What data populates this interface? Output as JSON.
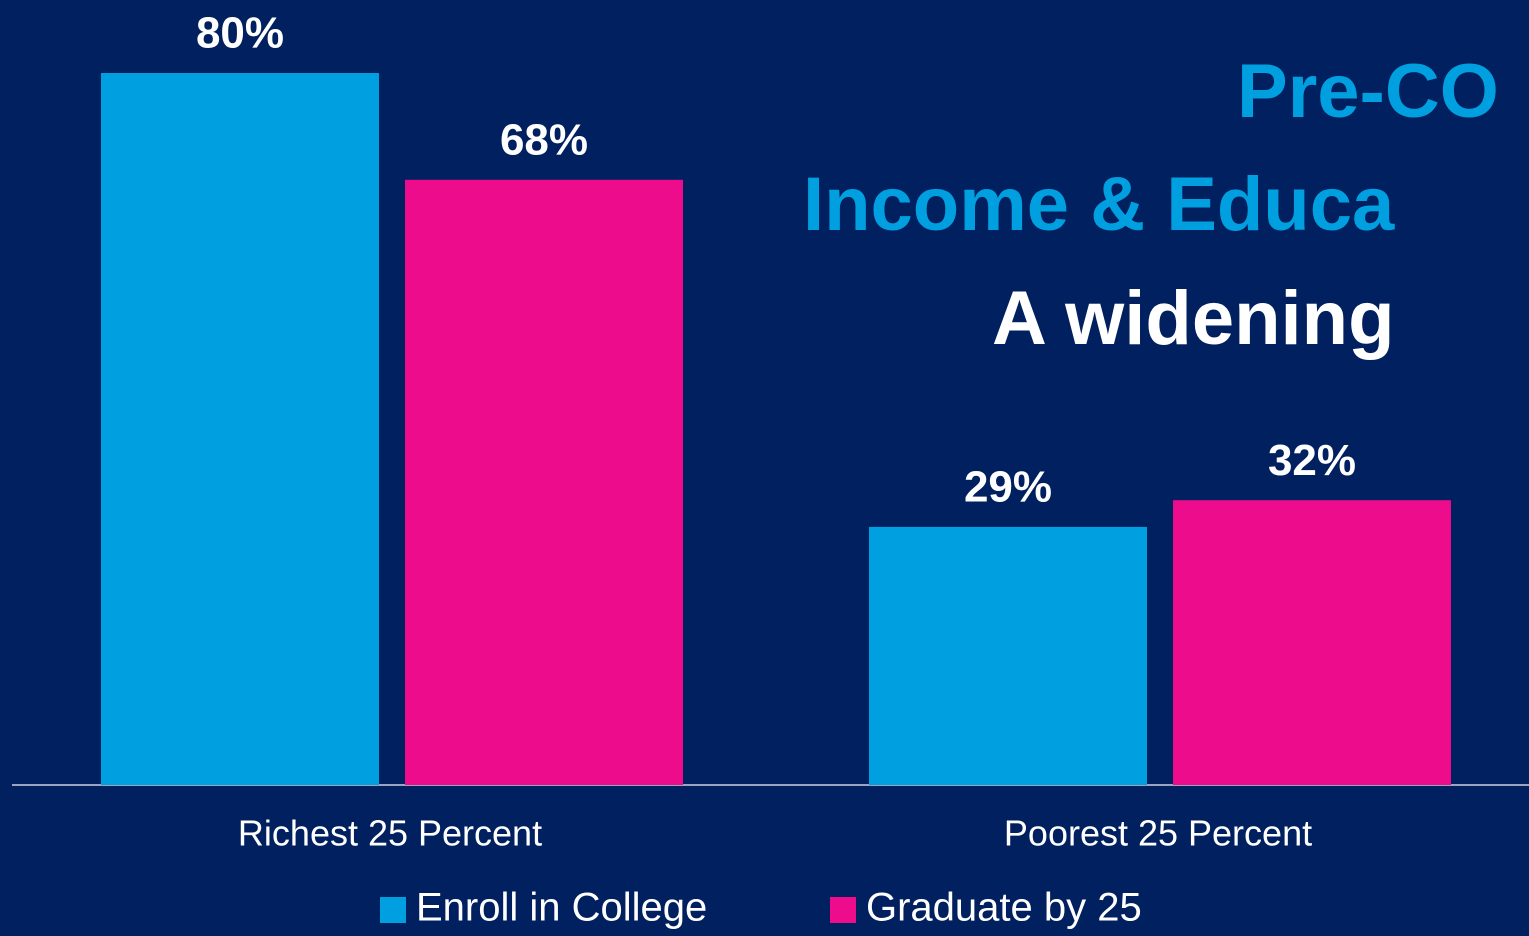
{
  "chart_data": {
    "type": "bar",
    "title_lines": [
      "Pre-CO",
      "Income & Educa"
    ],
    "subtitle": "A widening",
    "categories": [
      "Richest 25 Percent",
      "Poorest 25 Percent"
    ],
    "series": [
      {
        "name": "Enroll in College",
        "color": "#009fe0",
        "values": [
          80,
          29
        ],
        "value_labels": [
          "80%",
          "29%"
        ]
      },
      {
        "name": "Graduate by 25",
        "color": "#ec0c8c",
        "values": [
          68,
          32
        ],
        "value_labels": [
          "68%",
          "32%"
        ]
      }
    ],
    "ylim": [
      0,
      100
    ],
    "title_color": "#009fe0",
    "background": "#002060"
  }
}
